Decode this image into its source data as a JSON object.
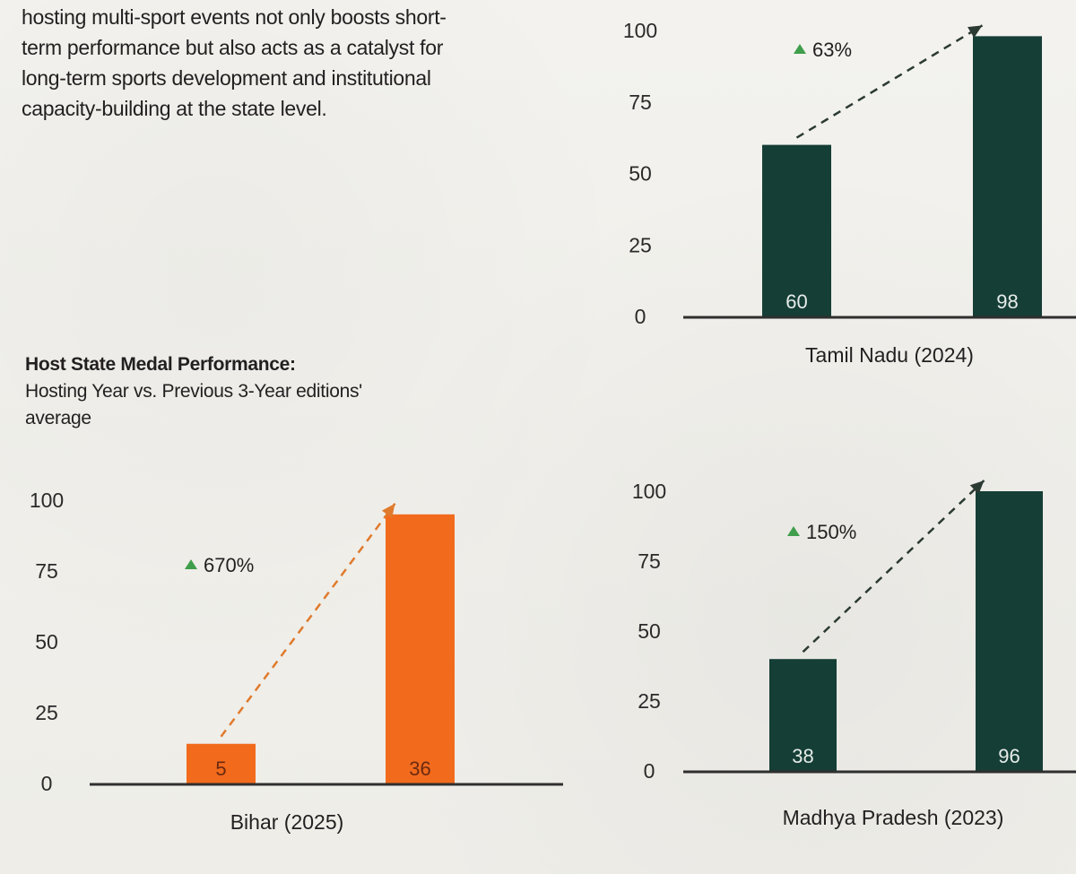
{
  "intro_lines": [
    "hosting multi-sport events not only boosts short-",
    "term performance but also acts as a catalyst for",
    "long-term sports development and institutional",
    "capacity-building at the state level."
  ],
  "heading": {
    "title": "Host State Medal Performance:",
    "subtitle_lines": [
      "Hosting Year vs. Previous 3-Year editions'",
      "average"
    ]
  },
  "colors": {
    "dark_bar": "#153e36",
    "orange_bar": "#f26b1d",
    "up_arrow": "#3f9e4c"
  },
  "chart_data": [
    {
      "type": "bar",
      "title": "Tamil Nadu (2024)",
      "categories": [
        "",
        ""
      ],
      "values": [
        60,
        98
      ],
      "data_labels": [
        "60",
        "98"
      ],
      "change_label": "63%",
      "ylim": [
        0,
        100
      ],
      "yticks": [
        0,
        25,
        50,
        75,
        100
      ],
      "bar_color": "#153e36",
      "label_color": "#e6ece9",
      "arrow_color": "#2b3a33"
    },
    {
      "type": "bar",
      "title": "Bihar (2025)",
      "categories": [
        "",
        ""
      ],
      "values": [
        14,
        95
      ],
      "data_labels": [
        "5",
        "36"
      ],
      "change_label": "670%",
      "ylim": [
        0,
        100
      ],
      "yticks": [
        0,
        25,
        50,
        75,
        100
      ],
      "bar_color": "#f26b1d",
      "label_color": "#6b2a10",
      "arrow_color": "#e07a2c"
    },
    {
      "type": "bar",
      "title": "Madhya Pradesh (2023)",
      "categories": [
        "",
        ""
      ],
      "values": [
        40,
        100
      ],
      "data_labels": [
        "38",
        "96"
      ],
      "change_label": "150%",
      "ylim": [
        0,
        100
      ],
      "yticks": [
        0,
        25,
        50,
        75,
        100
      ],
      "bar_color": "#153e36",
      "label_color": "#e6ece9",
      "arrow_color": "#2b3a33"
    }
  ]
}
